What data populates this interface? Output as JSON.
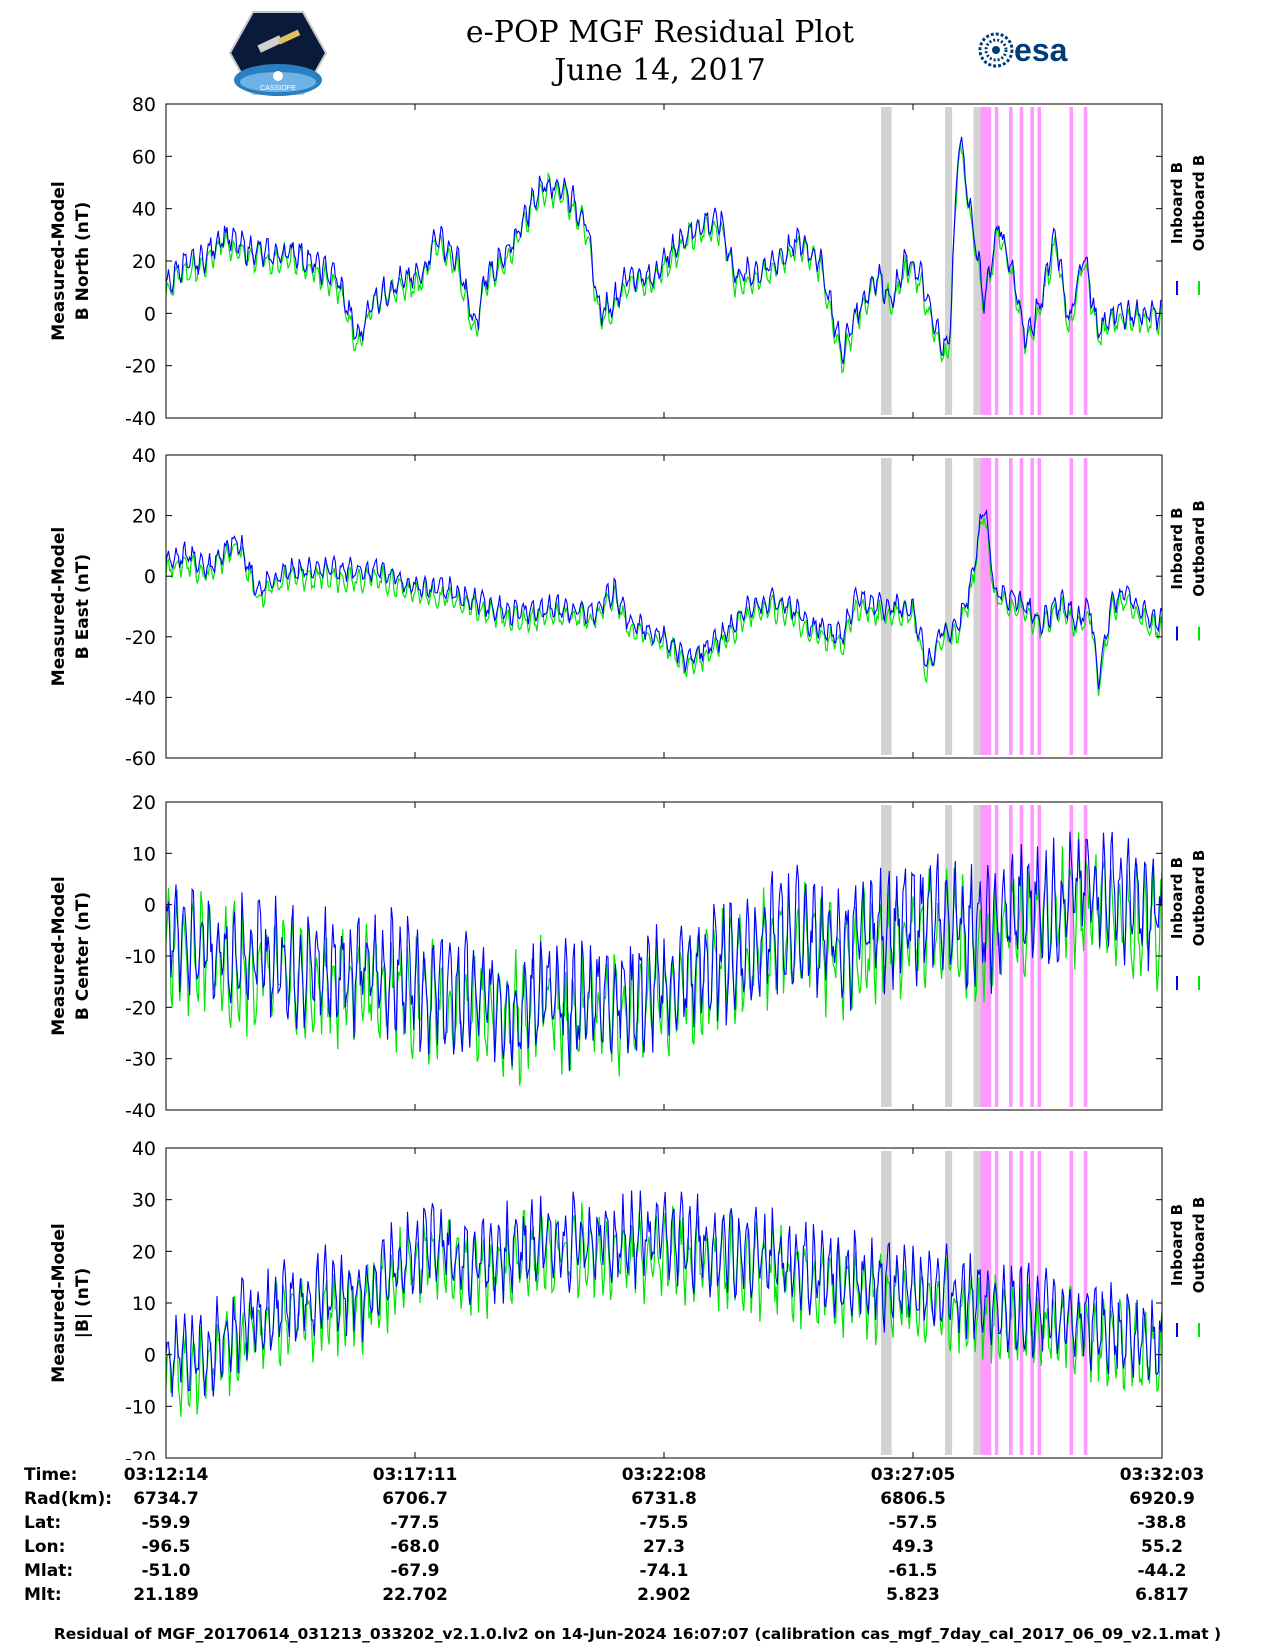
{
  "header": {
    "title": "e-POP MGF Residual Plot",
    "date": "June 14, 2017",
    "left_logo_text": "CASSIOPE",
    "right_logo_text": "esa"
  },
  "colors": {
    "inboard": "#0000ff",
    "outboard": "#00e600",
    "gray_band": "#d3d3d3",
    "pink_band": "#ff99ff",
    "esa_blue": "#003c78"
  },
  "chart_data": [
    {
      "type": "line",
      "ylabel": [
        "Measured-Model",
        "B North (nT)"
      ],
      "ylim": [
        -40,
        80
      ],
      "yticks": [
        80,
        60,
        40,
        20,
        0,
        -20,
        -40
      ],
      "legend": [
        "Inboard B",
        "Outboard B"
      ],
      "keypoints": [
        [
          0,
          10
        ],
        [
          4,
          18
        ],
        [
          10,
          20
        ],
        [
          16,
          30
        ],
        [
          22,
          25
        ],
        [
          30,
          22
        ],
        [
          36,
          24
        ],
        [
          40,
          20
        ],
        [
          48,
          14
        ],
        [
          54,
          -10
        ],
        [
          58,
          5
        ],
        [
          66,
          12
        ],
        [
          72,
          15
        ],
        [
          76,
          30
        ],
        [
          82,
          20
        ],
        [
          87,
          -6
        ],
        [
          90,
          15
        ],
        [
          96,
          22
        ],
        [
          100,
          35
        ],
        [
          106,
          50
        ],
        [
          112,
          48
        ],
        [
          118,
          35
        ],
        [
          122,
          0
        ],
        [
          126,
          5
        ],
        [
          130,
          15
        ],
        [
          136,
          13
        ],
        [
          140,
          20
        ],
        [
          146,
          30
        ],
        [
          152,
          35
        ],
        [
          156,
          35
        ],
        [
          160,
          15
        ],
        [
          164,
          15
        ],
        [
          170,
          18
        ],
        [
          178,
          28
        ],
        [
          184,
          20
        ],
        [
          190,
          -15
        ],
        [
          194,
          0
        ],
        [
          200,
          15
        ],
        [
          204,
          5
        ],
        [
          208,
          20
        ],
        [
          212,
          15
        ],
        [
          216,
          -5
        ],
        [
          220,
          -15
        ],
        [
          223,
          70
        ],
        [
          226,
          40
        ],
        [
          230,
          5
        ],
        [
          234,
          35
        ],
        [
          238,
          15
        ],
        [
          242,
          -10
        ],
        [
          246,
          5
        ],
        [
          250,
          30
        ],
        [
          254,
          -5
        ],
        [
          258,
          25
        ],
        [
          262,
          -8
        ],
        [
          266,
          0
        ]
      ]
    },
    {
      "type": "line",
      "ylabel": [
        "Measured-Model",
        "B East (nT)"
      ],
      "ylim": [
        -60,
        40
      ],
      "yticks": [
        40,
        20,
        0,
        -20,
        -40,
        -60
      ],
      "legend": [
        "Inboard B",
        "Outboard B"
      ],
      "keypoints": [
        [
          0,
          5
        ],
        [
          6,
          7
        ],
        [
          12,
          3
        ],
        [
          20,
          13
        ],
        [
          26,
          -5
        ],
        [
          34,
          2
        ],
        [
          50,
          2
        ],
        [
          60,
          2
        ],
        [
          70,
          -3
        ],
        [
          80,
          -5
        ],
        [
          90,
          -10
        ],
        [
          100,
          -12
        ],
        [
          110,
          -10
        ],
        [
          120,
          -12
        ],
        [
          126,
          -4
        ],
        [
          130,
          -15
        ],
        [
          140,
          -20
        ],
        [
          146,
          -27
        ],
        [
          150,
          -25
        ],
        [
          156,
          -20
        ],
        [
          164,
          -10
        ],
        [
          170,
          -8
        ],
        [
          176,
          -10
        ],
        [
          180,
          -15
        ],
        [
          186,
          -18
        ],
        [
          190,
          -20
        ],
        [
          194,
          -8
        ],
        [
          200,
          -10
        ],
        [
          210,
          -10
        ],
        [
          214,
          -30
        ],
        [
          218,
          -18
        ],
        [
          222,
          -18
        ],
        [
          226,
          -5
        ],
        [
          230,
          25
        ],
        [
          233,
          -5
        ],
        [
          240,
          -8
        ],
        [
          246,
          -15
        ],
        [
          252,
          -8
        ],
        [
          256,
          -15
        ],
        [
          260,
          -10
        ],
        [
          262,
          -35
        ],
        [
          266,
          -8
        ],
        [
          270,
          -5
        ],
        [
          274,
          -12
        ],
        [
          280,
          -15
        ]
      ]
    },
    {
      "type": "line",
      "ylabel": [
        "Measured-Model",
        "B Center (nT)"
      ],
      "ylim": [
        -40,
        20
      ],
      "yticks": [
        20,
        10,
        0,
        -10,
        -20,
        -30,
        -40
      ],
      "legend": [
        "Inboard B",
        "Outboard B"
      ],
      "keypoints": [
        [
          0,
          -5
        ],
        [
          10,
          -8
        ],
        [
          20,
          -10
        ],
        [
          40,
          -12
        ],
        [
          60,
          -13
        ],
        [
          80,
          -18
        ],
        [
          90,
          -18
        ],
        [
          100,
          -20
        ],
        [
          106,
          -16
        ],
        [
          110,
          -20
        ],
        [
          120,
          -18
        ],
        [
          130,
          -18
        ],
        [
          140,
          -16
        ],
        [
          150,
          -13
        ],
        [
          160,
          -10
        ],
        [
          170,
          -6
        ],
        [
          180,
          -5
        ],
        [
          190,
          -8
        ],
        [
          200,
          -5
        ],
        [
          210,
          -3
        ],
        [
          220,
          -3
        ],
        [
          230,
          -5
        ],
        [
          240,
          0
        ],
        [
          250,
          0
        ],
        [
          260,
          5
        ],
        [
          270,
          0
        ],
        [
          280,
          -2
        ]
      ]
    },
    {
      "type": "line",
      "ylabel": [
        "Measured-Model",
        "|B| (nT)"
      ],
      "ylim": [
        -20,
        40
      ],
      "yticks": [
        40,
        30,
        20,
        10,
        0,
        -10,
        -20
      ],
      "legend": [
        "Inboard B",
        "Outboard B"
      ],
      "keypoints": [
        [
          0,
          0
        ],
        [
          10,
          0
        ],
        [
          20,
          5
        ],
        [
          30,
          8
        ],
        [
          45,
          12
        ],
        [
          55,
          12
        ],
        [
          65,
          18
        ],
        [
          75,
          22
        ],
        [
          85,
          18
        ],
        [
          95,
          20
        ],
        [
          105,
          22
        ],
        [
          115,
          22
        ],
        [
          125,
          22
        ],
        [
          135,
          22
        ],
        [
          145,
          22
        ],
        [
          160,
          20
        ],
        [
          175,
          18
        ],
        [
          190,
          15
        ],
        [
          200,
          14
        ],
        [
          210,
          13
        ],
        [
          220,
          12
        ],
        [
          230,
          10
        ],
        [
          240,
          9
        ],
        [
          250,
          8
        ],
        [
          260,
          6
        ],
        [
          270,
          4
        ],
        [
          280,
          2
        ]
      ]
    }
  ],
  "shading": {
    "gray_bands": [
      [
        201,
        204
      ],
      [
        219,
        221
      ],
      [
        227,
        229
      ]
    ],
    "pink_bands": [
      [
        229,
        232
      ],
      [
        233,
        234
      ],
      [
        237,
        238
      ],
      [
        240,
        241
      ],
      [
        243,
        244
      ],
      [
        245,
        246
      ],
      [
        254,
        255
      ],
      [
        258,
        259
      ]
    ]
  },
  "x_axis": {
    "ticks": [
      0,
      70,
      140,
      210,
      280
    ]
  },
  "info_table": {
    "labels": [
      "Time:",
      "Rad(km):",
      "Lat:",
      "Lon:",
      "Mlat:",
      "Mlt:"
    ],
    "rows": [
      [
        "03:12:14",
        "03:17:11",
        "03:22:08",
        "03:27:05",
        "03:32:03"
      ],
      [
        "6734.7",
        "6706.7",
        "6731.8",
        "6806.5",
        "6920.9"
      ],
      [
        "-59.9",
        "-77.5",
        "-75.5",
        "-57.5",
        "-38.8"
      ],
      [
        "-96.5",
        "-68.0",
        "27.3",
        "49.3",
        "55.2"
      ],
      [
        "-51.0",
        "-67.9",
        "-74.1",
        "-61.5",
        "-44.2"
      ],
      [
        "21.189",
        "22.702",
        "2.902",
        "5.823",
        "6.817"
      ]
    ]
  },
  "footer": "Residual of MGF_20170614_031213_033202_v2.1.0.lv2 on 14-Jun-2024 16:07:07 (calibration cas_mgf_7day_cal_2017_06_09_v2.1.mat )"
}
